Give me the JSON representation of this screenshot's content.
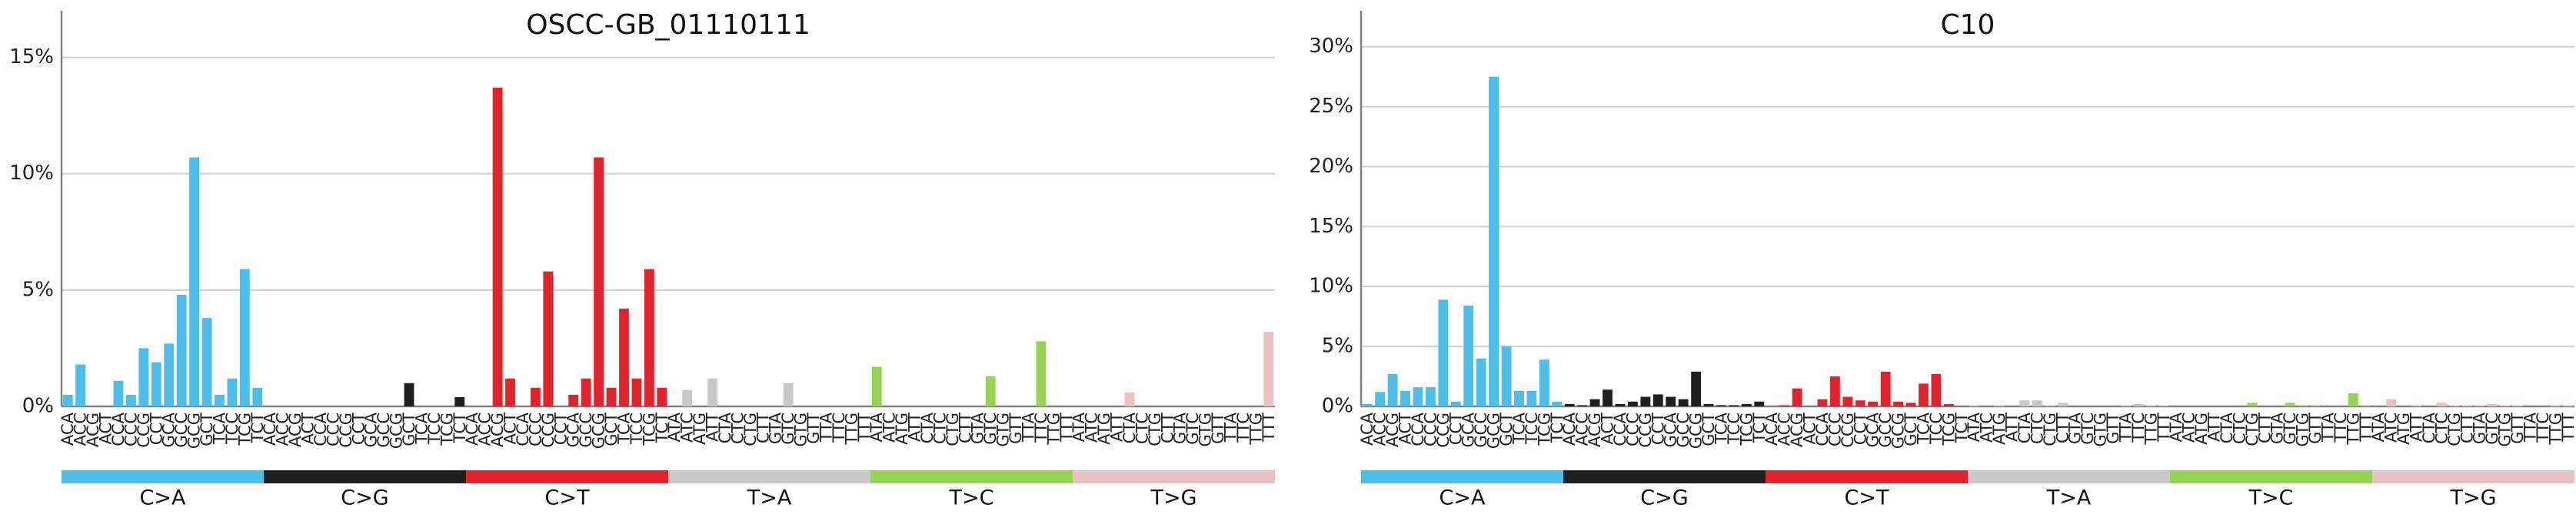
{
  "chart_data": [
    {
      "type": "bar",
      "title": "OSCC-GB_01110111",
      "xlabel": "",
      "ylabel": "",
      "ylim": [
        0,
        0.17
      ],
      "yticks": [
        0,
        0.05,
        0.1,
        0.15
      ],
      "ytick_labels": [
        "0%",
        "5%",
        "10%",
        "15%"
      ],
      "grid": true,
      "categories": [
        "ACA",
        "ACC",
        "ACG",
        "ACT",
        "CCA",
        "CCC",
        "CCG",
        "CCT",
        "GCA",
        "GCC",
        "GCG",
        "GCT",
        "TCA",
        "TCC",
        "TCG",
        "TCT",
        "ACA",
        "ACC",
        "ACG",
        "ACT",
        "CCA",
        "CCC",
        "CCG",
        "CCT",
        "GCA",
        "GCC",
        "GCG",
        "GCT",
        "TCA",
        "TCC",
        "TCG",
        "TCT",
        "ACA",
        "ACC",
        "ACG",
        "ACT",
        "CCA",
        "CCC",
        "CCG",
        "CCT",
        "GCA",
        "GCC",
        "GCG",
        "GCT",
        "TCA",
        "TCC",
        "TCG",
        "TCT",
        "ATA",
        "ATC",
        "ATG",
        "ATT",
        "CTA",
        "CTC",
        "CTG",
        "CTT",
        "GTA",
        "GTC",
        "GTG",
        "GTT",
        "TTA",
        "TTC",
        "TTG",
        "TTT",
        "ATA",
        "ATC",
        "ATG",
        "ATT",
        "CTA",
        "CTC",
        "CTG",
        "CTT",
        "GTA",
        "GTC",
        "GTG",
        "GTT",
        "TTA",
        "TTC",
        "TTG",
        "TTT",
        "ATA",
        "ATC",
        "ATG",
        "ATT",
        "CTA",
        "CTC",
        "CTG",
        "CTT",
        "GTA",
        "GTC",
        "GTG",
        "GTT",
        "TTA",
        "TTC",
        "TTG",
        "TTT"
      ],
      "values": [
        0.005,
        0.018,
        0,
        0,
        0.011,
        0.005,
        0.025,
        0.019,
        0.027,
        0.048,
        0.107,
        0.038,
        0.005,
        0.012,
        0.059,
        0.008,
        0,
        0,
        0,
        0,
        0,
        0,
        0,
        0,
        0,
        0,
        0,
        0.01,
        0,
        0,
        0,
        0.004,
        0,
        0,
        0.137,
        0.012,
        0,
        0.008,
        0.058,
        0,
        0.005,
        0.012,
        0.107,
        0.008,
        0.042,
        0.012,
        0.059,
        0.008,
        0,
        0.007,
        0,
        0.012,
        0,
        0,
        0,
        0,
        0,
        0.01,
        0,
        0,
        0,
        0,
        0,
        0,
        0.017,
        0,
        0,
        0,
        0,
        0,
        0,
        0,
        0,
        0.013,
        0,
        0,
        0,
        0.028,
        0,
        0,
        0,
        0,
        0,
        0,
        0.006,
        0,
        0,
        0,
        0,
        0,
        0,
        0,
        0,
        0,
        0,
        0.032
      ],
      "groups": [
        "C>A",
        "C>G",
        "C>T",
        "T>A",
        "T>C",
        "T>G"
      ],
      "colors": [
        "#4dbde9",
        "#1f1f1f",
        "#e3232b",
        "#c8c8c8",
        "#96d253",
        "#ebbfc6"
      ]
    },
    {
      "type": "bar",
      "title": "C10",
      "xlabel": "",
      "ylabel": "",
      "ylim": [
        0,
        0.33
      ],
      "yticks": [
        0,
        0.05,
        0.1,
        0.15,
        0.2,
        0.25,
        0.3
      ],
      "ytick_labels": [
        "0%",
        "5%",
        "10%",
        "15%",
        "20%",
        "25%",
        "30%"
      ],
      "grid": true,
      "categories": [
        "ACA",
        "ACC",
        "ACG",
        "ACT",
        "CCA",
        "CCC",
        "CCG",
        "CCT",
        "GCA",
        "GCC",
        "GCG",
        "GCT",
        "TCA",
        "TCC",
        "TCG",
        "TCT",
        "ACA",
        "ACC",
        "ACG",
        "ACT",
        "CCA",
        "CCC",
        "CCG",
        "CCT",
        "GCA",
        "GCC",
        "GCG",
        "GCT",
        "TCA",
        "TCC",
        "TCG",
        "TCT",
        "ACA",
        "ACC",
        "ACG",
        "ACT",
        "CCA",
        "CCC",
        "CCG",
        "CCT",
        "GCA",
        "GCC",
        "GCG",
        "GCT",
        "TCA",
        "TCC",
        "TCG",
        "TCT",
        "ATA",
        "ATC",
        "ATG",
        "ATT",
        "CTA",
        "CTC",
        "CTG",
        "CTT",
        "GTA",
        "GTC",
        "GTG",
        "GTT",
        "TTA",
        "TTC",
        "TTG",
        "TTT",
        "ATA",
        "ATC",
        "ATG",
        "ATT",
        "CTA",
        "CTC",
        "CTG",
        "CTT",
        "GTA",
        "GTC",
        "GTG",
        "GTT",
        "TTA",
        "TTC",
        "TTG",
        "TTT",
        "ATA",
        "ATC",
        "ATG",
        "ATT",
        "CTA",
        "CTC",
        "CTG",
        "CTT",
        "GTA",
        "GTC",
        "GTG",
        "GTT",
        "TTA",
        "TTC",
        "TTG",
        "TTT"
      ],
      "values": [
        0.002,
        0.012,
        0.027,
        0.013,
        0.016,
        0.016,
        0.089,
        0.004,
        0.084,
        0.04,
        0.275,
        0.05,
        0.013,
        0.013,
        0.039,
        0.004,
        0.002,
        0.001,
        0.006,
        0.014,
        0.002,
        0.004,
        0.008,
        0.01,
        0.008,
        0.006,
        0.029,
        0.002,
        0.001,
        0.001,
        0.002,
        0.004,
        0,
        0.001,
        0.015,
        0,
        0.006,
        0.025,
        0.008,
        0.005,
        0.004,
        0.029,
        0.004,
        0.003,
        0.019,
        0.027,
        0.002,
        0,
        0.001,
        0,
        0.001,
        0,
        0.005,
        0.005,
        0.001,
        0.003,
        0,
        0,
        0,
        0,
        0.001,
        0.002,
        0.001,
        0.001,
        0,
        0,
        0,
        0,
        0,
        0,
        0.003,
        0,
        0,
        0.003,
        0.001,
        0.001,
        0,
        0,
        0.011,
        0.001,
        0,
        0.006,
        0,
        0.001,
        0,
        0.003,
        0.001,
        0.001,
        0.001,
        0.002,
        0.001,
        0.001,
        0,
        0,
        0.001,
        0.001
      ],
      "groups": [
        "C>A",
        "C>G",
        "C>T",
        "T>A",
        "T>C",
        "T>G"
      ],
      "colors": [
        "#4dbde9",
        "#1f1f1f",
        "#e3232b",
        "#c8c8c8",
        "#96d253",
        "#ebbfc6"
      ]
    }
  ]
}
